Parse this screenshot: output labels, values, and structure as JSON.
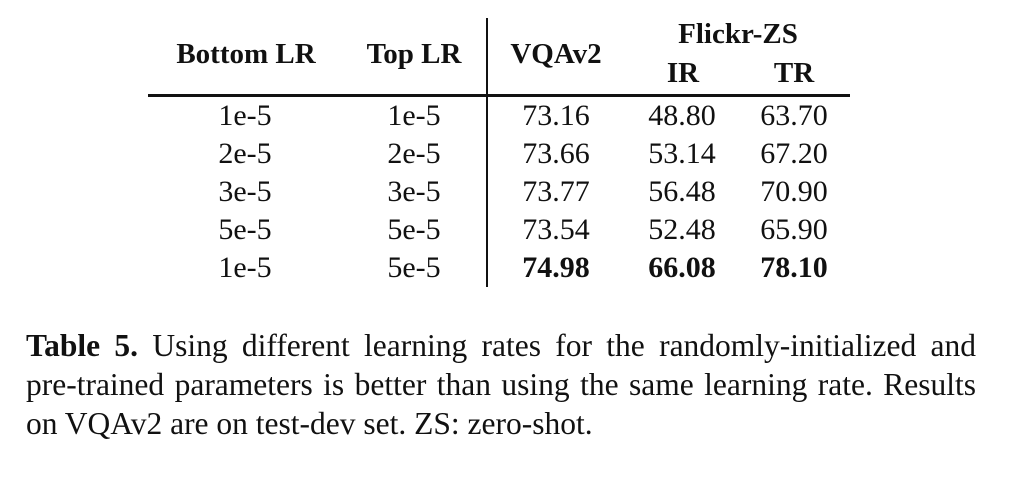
{
  "table": {
    "headers": {
      "bottom_lr": "Bottom LR",
      "top_lr": "Top LR",
      "vqav2": "VQAv2",
      "flickr_zs": "Flickr-ZS",
      "ir": "IR",
      "tr": "TR"
    },
    "rows": [
      {
        "bottom_lr": "1e-5",
        "top_lr": "1e-5",
        "vqav2": "73.16",
        "ir": "48.80",
        "tr": "63.70",
        "bold": false
      },
      {
        "bottom_lr": "2e-5",
        "top_lr": "2e-5",
        "vqav2": "73.66",
        "ir": "53.14",
        "tr": "67.20",
        "bold": false
      },
      {
        "bottom_lr": "3e-5",
        "top_lr": "3e-5",
        "vqav2": "73.77",
        "ir": "56.48",
        "tr": "70.90",
        "bold": false
      },
      {
        "bottom_lr": "5e-5",
        "top_lr": "5e-5",
        "vqav2": "73.54",
        "ir": "52.48",
        "tr": "65.90",
        "bold": false
      },
      {
        "bottom_lr": "1e-5",
        "top_lr": "5e-5",
        "vqav2": "74.98",
        "ir": "66.08",
        "tr": "78.10",
        "bold": true
      }
    ]
  },
  "caption": {
    "label": "Table 5.",
    "text": "Using different learning rates for the randomly-initialized and pre-trained parameters is better than using the same learning rate. Results on VQAv2 are on test-dev set. ZS: zero-shot."
  }
}
